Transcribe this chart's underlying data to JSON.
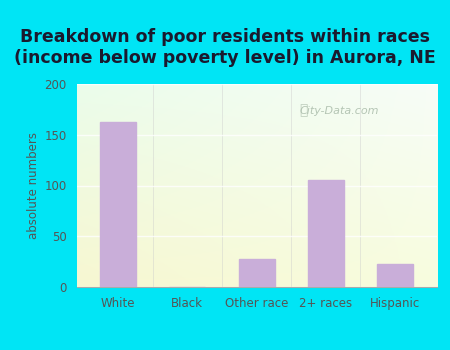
{
  "title_line1": "Breakdown of poor residents within races",
  "title_line2": "(income below poverty level) in Aurora, NE",
  "categories": [
    "White",
    "Black",
    "Other race",
    "2+ races",
    "Hispanic"
  ],
  "values": [
    163,
    0,
    28,
    105,
    23
  ],
  "bar_color": "#c9aed9",
  "ylabel": "absolute numbers",
  "ylim": [
    0,
    200
  ],
  "yticks": [
    0,
    50,
    100,
    150,
    200
  ],
  "bg_outer": "#00e5f5",
  "bg_plot_color": "#e8f5e0",
  "title_fontsize": 12.5,
  "ylabel_fontsize": 8.5,
  "tick_fontsize": 8.5,
  "title_color": "#1a1a2e",
  "tick_color": "#555555",
  "grid_color": "#d0e8d0",
  "watermark_text": "City-Data.com",
  "watermark_color": "#aabcaa",
  "bar_width": 0.52
}
